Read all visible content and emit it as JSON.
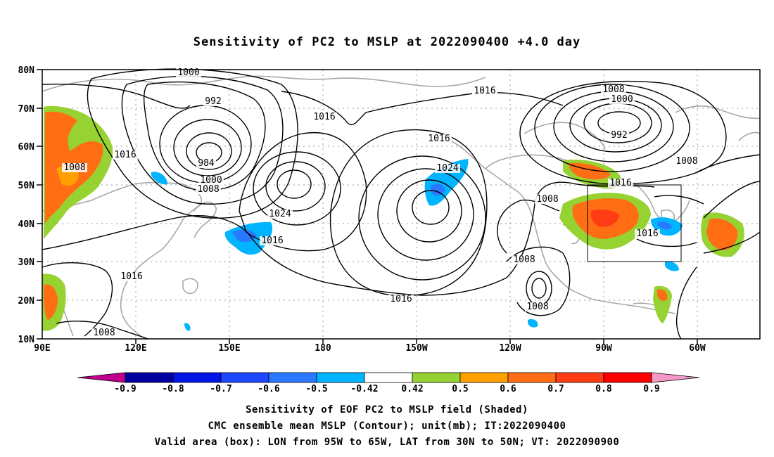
{
  "title": "Sensitivity of PC2 to MSLP at 2022090400 +4.0 day",
  "map": {
    "lat_labels": [
      "80N",
      "70N",
      "60N",
      "50N",
      "40N",
      "30N",
      "20N",
      "10N"
    ],
    "lon_labels": [
      "90E",
      "120E",
      "150E",
      "180",
      "150W",
      "120W",
      "90W",
      "60W"
    ],
    "contour_labels": [
      "1000",
      "992",
      "984",
      "1000",
      "1008",
      "1008",
      "1016",
      "1016",
      "1024",
      "1016",
      "1016",
      "1016",
      "1024",
      "1016",
      "1016",
      "1008",
      "1000",
      "992",
      "1008",
      "1016",
      "1016",
      "1008",
      "1008",
      "1008",
      "1008",
      "1016"
    ],
    "valid_box": {
      "lon_from": "95W",
      "lon_to": "65W",
      "lat_from": "30N",
      "lat_to": "50N"
    }
  },
  "colorbar": {
    "labels": [
      "-0.9",
      "-0.8",
      "-0.7",
      "-0.6",
      "-0.5",
      "-0.42",
      "0.42",
      "0.5",
      "0.6",
      "0.7",
      "0.8",
      "0.9"
    ],
    "colors": [
      "#0000a0",
      "#0014e6",
      "#1e46ff",
      "#2a78ff",
      "#00b4ff",
      "#ffffff",
      "#96d232",
      "#ffa000",
      "#ff6e14",
      "#ff3c14",
      "#ff0000"
    ],
    "low_cap_color": "#c0008c",
    "high_cap_color": "#f59ac8"
  },
  "captions": {
    "line1": "Sensitivity of EOF PC2 to MSLP field (Shaded)",
    "line2": "CMC ensemble mean MSLP (Contour); unit(mb); IT:2022090400",
    "line3": "Valid area (box): LON from 95W to 65W, LAT from 30N to 50N; VT: 2022090900"
  }
}
